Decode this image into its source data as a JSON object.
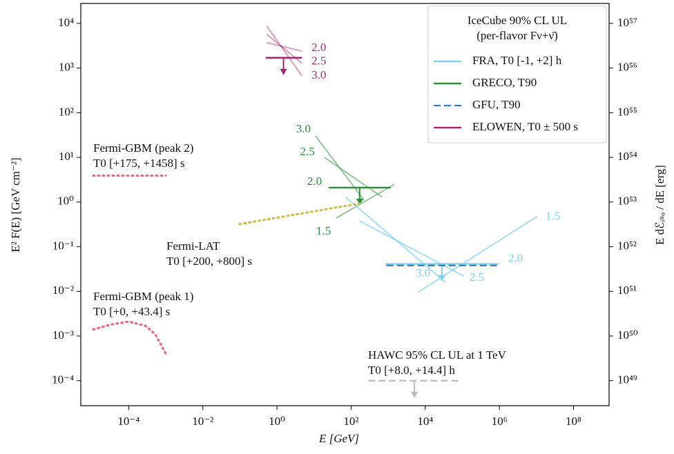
{
  "chart_data": {
    "type": "line",
    "xscale": "log",
    "yscale": "log",
    "xlabel": "E [GeV]",
    "ylabel": "E² F(E) [GeV cm⁻²]",
    "y2label": "E dℰᵢₛₒ / dE [erg]",
    "xlim": [
      5.1e-06,
      910000000.0
    ],
    "ylim": [
      2.75e-05,
      28000.0
    ],
    "y2lim": [
      2.75e+48,
      2.8e+57
    ],
    "xticks": [
      {
        "value": 0.0001,
        "label": "10⁻⁴"
      },
      {
        "value": 0.01,
        "label": "10⁻²"
      },
      {
        "value": 1,
        "label": "10⁰"
      },
      {
        "value": 100,
        "label": "10²"
      },
      {
        "value": 10000,
        "label": "10⁴"
      },
      {
        "value": 1000000,
        "label": "10⁶"
      },
      {
        "value": 100000000,
        "label": "10⁸"
      }
    ],
    "yticks": [
      {
        "value": 0.0001,
        "label": "10⁻⁴"
      },
      {
        "value": 0.001,
        "label": "10⁻³"
      },
      {
        "value": 0.01,
        "label": "10⁻²"
      },
      {
        "value": 0.1,
        "label": "10⁻¹"
      },
      {
        "value": 1,
        "label": "10⁰"
      },
      {
        "value": 10,
        "label": "10¹"
      },
      {
        "value": 100,
        "label": "10²"
      },
      {
        "value": 1000,
        "label": "10³"
      },
      {
        "value": 10000,
        "label": "10⁴"
      }
    ],
    "y2ticks": [
      {
        "value": 1e+49,
        "label": "10⁴⁹"
      },
      {
        "value": 1e+50,
        "label": "10⁵⁰"
      },
      {
        "value": 1e+51,
        "label": "10⁵¹"
      },
      {
        "value": 1e+52,
        "label": "10⁵²"
      },
      {
        "value": 1e+53,
        "label": "10⁵³"
      },
      {
        "value": 1e+54,
        "label": "10⁵⁴"
      },
      {
        "value": 1e+55,
        "label": "10⁵⁵"
      },
      {
        "value": 1e+56,
        "label": "10⁵⁶"
      },
      {
        "value": 1e+57,
        "label": "10⁵⁷"
      }
    ],
    "legend": {
      "position": "upper right",
      "title": [
        "IceCube 90% CL UL",
        "(per-flavor Fν+ν̄)"
      ]
    },
    "series": [
      {
        "name": "FRA, T0 [-1, +2] h",
        "color": "#7fcfee",
        "dash": "solid",
        "opacity": 1,
        "width": 2.4,
        "x": [
          840,
          950000
        ],
        "values": [
          0.041,
          0.041
        ],
        "arrow_x": 28000,
        "label": "2.0"
      },
      {
        "name": "GRECO, T90",
        "color": "#2e8b3a",
        "dash": "solid",
        "opacity": 1,
        "width": 2.4,
        "x": [
          25,
          1170
        ],
        "values": [
          2.1,
          2.1
        ],
        "arrow_x": 170,
        "label": "2.0"
      },
      {
        "name": "GFU, T90",
        "color": "#3a78bd",
        "dash": "dashed",
        "opacity": 1,
        "width": 2.2,
        "x": [
          900,
          950000
        ],
        "values": [
          0.038,
          0.038
        ]
      },
      {
        "name": "ELOWEN, T0 ± 500 s",
        "color": "#a3286a",
        "dash": "solid",
        "opacity": 1,
        "width": 2.4,
        "x": [
          0.5,
          4.7
        ],
        "values": [
          1700,
          1700
        ],
        "arrow_x": 1.5
      },
      {
        "color": "#a3286a",
        "dash": "solid",
        "opacity": 0.45,
        "width": 2,
        "x": [
          0.53,
          4.7
        ],
        "values": [
          8700,
          670
        ],
        "label": "3.0"
      },
      {
        "color": "#a3286a",
        "dash": "solid",
        "opacity": 0.45,
        "width": 2,
        "x": [
          0.53,
          4.7
        ],
        "values": [
          5700,
          1280
        ],
        "label": "2.5"
      },
      {
        "color": "#a3286a",
        "dash": "solid",
        "opacity": 0.45,
        "width": 2,
        "x": [
          0.53,
          4.7
        ],
        "values": [
          3700,
          2400
        ],
        "label": "2.0"
      },
      {
        "color": "#2e8b3a",
        "dash": "solid",
        "opacity": 0.5,
        "width": 2,
        "x": [
          11,
          224
        ],
        "values": [
          30,
          1.1
        ],
        "label": "3.0"
      },
      {
        "color": "#2e8b3a",
        "dash": "solid",
        "opacity": 0.5,
        "width": 2,
        "x": [
          19,
          680
        ],
        "values": [
          10,
          1.3
        ],
        "label": "2.5"
      },
      {
        "color": "#2e8b3a",
        "dash": "solid",
        "opacity": 0.5,
        "width": 2,
        "x": [
          40,
          1480
        ],
        "values": [
          0.44,
          2.5
        ],
        "label": "1.5"
      },
      {
        "color": "#7fcfee",
        "dash": "solid",
        "opacity": 0.7,
        "width": 2,
        "x": [
          70,
          35000
        ],
        "values": [
          1.3,
          0.016
        ],
        "label": "3.0"
      },
      {
        "color": "#7fcfee",
        "dash": "solid",
        "opacity": 0.7,
        "width": 2,
        "x": [
          165,
          110000
        ],
        "values": [
          0.38,
          0.022
        ],
        "label": "2.5"
      },
      {
        "color": "#7fcfee",
        "dash": "solid",
        "opacity": 0.7,
        "width": 2,
        "x": [
          6300,
          10500000
        ],
        "values": [
          0.0095,
          0.48
        ],
        "label": "1.5"
      },
      {
        "color": "#cdb93f",
        "dash": "dotted",
        "opacity": 1,
        "width": 3,
        "x": [
          0.098,
          170
        ],
        "values": [
          0.32,
          0.93
        ]
      },
      {
        "color": "#e9627c",
        "dash": "dotted",
        "opacity": 1,
        "width": 3,
        "x": [
          1.1e-05,
          0.001
        ],
        "values": [
          3.9,
          3.9
        ]
      },
      {
        "color": "#e9627c",
        "dash": "dotted",
        "opacity": 1,
        "width": 3,
        "x": [
          1.1e-05,
          3.2e-05,
          0.0001,
          0.00028,
          0.00052,
          0.001
        ],
        "values": [
          0.0014,
          0.0018,
          0.0021,
          0.0017,
          0.0011,
          0.0004
        ]
      },
      {
        "color": "#bbbbbb",
        "dash": "dashed",
        "opacity": 1,
        "width": 2.2,
        "x": [
          290,
          93000
        ],
        "values": [
          0.0001,
          0.0001
        ],
        "arrow_x": 5100
      }
    ],
    "annotations": [
      {
        "text": [
          "Fermi-GBM (peak 2)",
          "T0 [+175, +1458] s"
        ]
      },
      {
        "text": [
          "Fermi-LAT",
          "T0 [+200, +800] s"
        ]
      },
      {
        "text": [
          "Fermi-GBM (peak 1)",
          "T0 [+0, +43.4] s"
        ]
      },
      {
        "text": [
          "HAWC 95% CL UL at 1 TeV",
          "T0 [+8.0, +14.4] h"
        ]
      }
    ]
  }
}
